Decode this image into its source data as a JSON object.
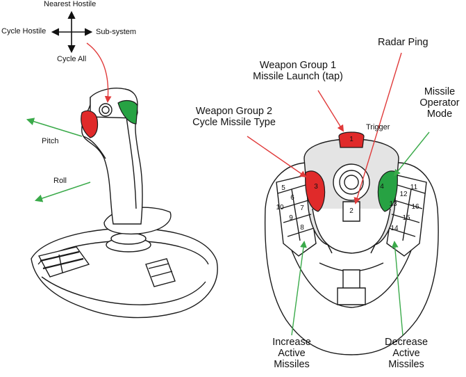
{
  "left_joystick": {
    "hat_up": "Nearest Hostile",
    "hat_left": "Cycle Hostile",
    "hat_right": "Sub-system",
    "hat_down": "Cycle All",
    "pitch": "Pitch",
    "roll": "Roll"
  },
  "right_joystick": {
    "radar_ping": "Radar Ping",
    "weapon_group_1": [
      "Weapon Group 1",
      "Missile Launch (tap)"
    ],
    "missile_operator_mode": [
      "Missile",
      "Operator",
      "Mode"
    ],
    "weapon_group_2": [
      "Weapon Group 2",
      "Cycle Missile Type"
    ],
    "trigger": "Trigger",
    "increase": [
      "Increase",
      "Active",
      "Missiles"
    ],
    "decrease": [
      "Decrease",
      "Active",
      "Missiles"
    ],
    "button_numbers": [
      "1",
      "2",
      "3",
      "4",
      "5",
      "6",
      "7",
      "8",
      "9",
      "10",
      "11",
      "12",
      "13",
      "14",
      "15",
      "16"
    ]
  },
  "colors": {
    "red_button": "#e02a2a",
    "green_button": "#27a243",
    "red_arrow": "#e03a3a",
    "green_arrow": "#3aaa4a",
    "outline": "#1a1a1a"
  },
  "icons": {
    "hat_directions": "four-way-arrow-icon",
    "pitch_arrow": "arrow-upleft-icon",
    "roll_arrow": "arrow-downleft-icon"
  }
}
